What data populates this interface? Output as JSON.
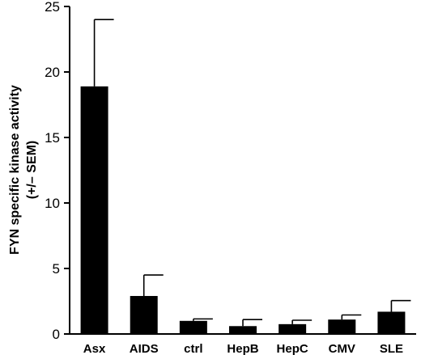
{
  "chart_data": {
    "type": "bar",
    "categories": [
      "Asx",
      "AIDS",
      "ctrl",
      "HepB",
      "HepC",
      "CMV",
      "SLE"
    ],
    "values": [
      18.9,
      2.9,
      1.0,
      0.6,
      0.75,
      1.1,
      1.7
    ],
    "error_sem": [
      5.1,
      1.6,
      0.15,
      0.5,
      0.3,
      0.35,
      0.85
    ],
    "title": "",
    "xlabel": "",
    "ylabel_line1": "FYN specific kinase activity",
    "ylabel_line2": "(+/– SEM)",
    "ylim": [
      0,
      25
    ],
    "yticks": [
      0,
      5,
      10,
      15,
      20,
      25
    ],
    "ytick_labels": [
      "0",
      "5",
      "10",
      "15",
      "20",
      "25"
    ],
    "grid": false,
    "bar_color": "#000000"
  }
}
